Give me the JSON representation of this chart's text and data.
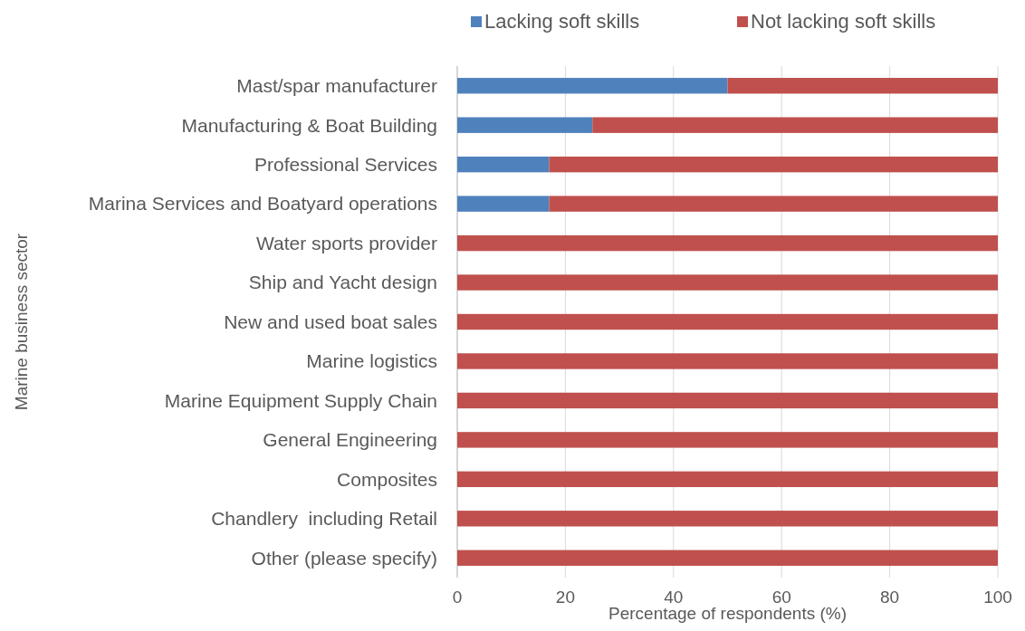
{
  "chart_data": {
    "type": "bar",
    "orientation": "horizontal",
    "stacked": true,
    "xlabel": "Percentage of respondents (%)",
    "ylabel": "Marine business sector",
    "categories": [
      "Mast/spar manufacturer",
      "Manufacturing & Boat Building",
      "Professional Services",
      "Marina Services and Boatyard operations",
      "Water sports provider",
      "Ship and Yacht design",
      "New and used boat sales",
      "Marine logistics",
      "Marine Equipment Supply Chain",
      "General Engineering",
      "Composites",
      "Chandlery  including Retail",
      "Other (please specify)"
    ],
    "series": [
      {
        "name": "Lacking soft skills",
        "color": "#4f81bd",
        "values": [
          50,
          25,
          17,
          17,
          0,
          0,
          0,
          0,
          0,
          0,
          0,
          0,
          0
        ]
      },
      {
        "name": "Not lacking soft skills",
        "color": "#c0504d",
        "values": [
          50,
          75,
          83,
          83,
          100,
          100,
          100,
          100,
          100,
          100,
          100,
          100,
          100
        ]
      }
    ],
    "xlim": [
      0,
      100
    ],
    "xticks": [
      0,
      20,
      40,
      60,
      80,
      100
    ],
    "grid": "x",
    "legend": "top"
  }
}
